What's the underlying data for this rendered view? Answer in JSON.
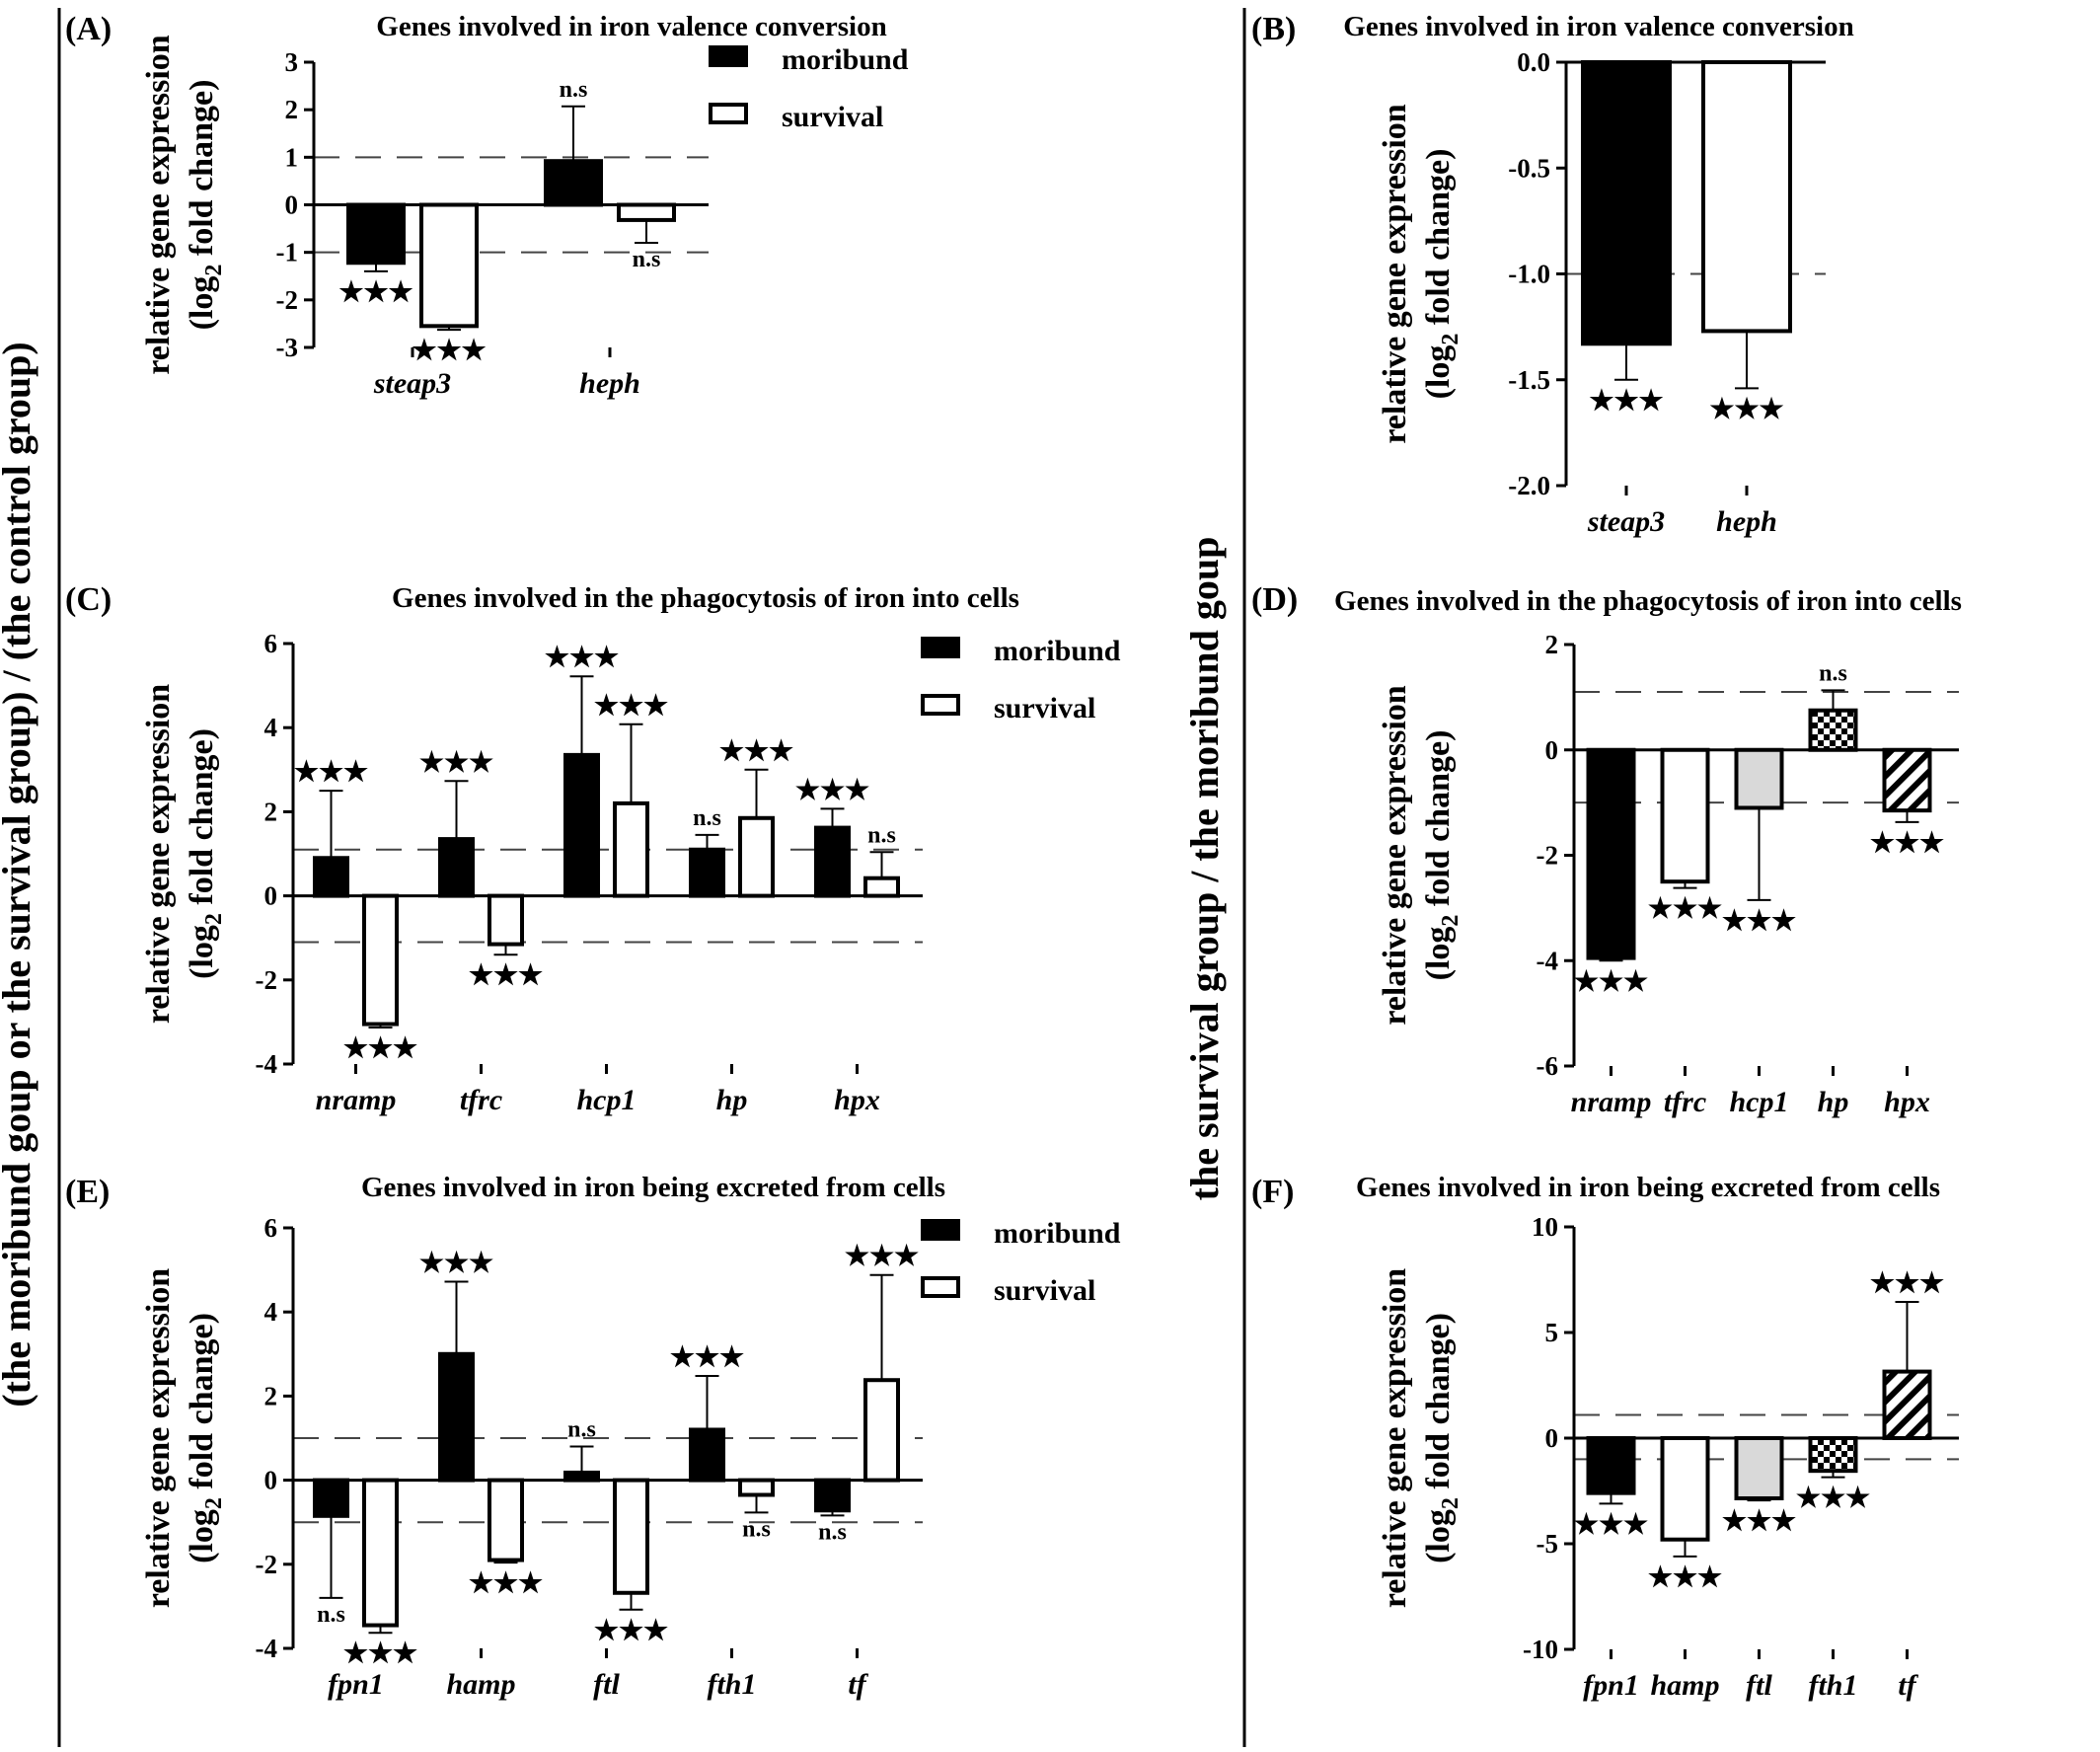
{
  "side_labels": {
    "left": "(the moribund goup or the survival group) / (the control group)",
    "right": "the survival group / the moribund goup"
  },
  "legend": {
    "moribund": "moribund",
    "survival": "survival"
  },
  "y_axis_label": {
    "line1": "relative gene expression",
    "line2_pre": "(log",
    "line2_sub": "2",
    "line2_post": " fold change)"
  },
  "colors": {
    "moribund": "#000000",
    "survival": "#ffffff",
    "gray": "#d9d9d9"
  },
  "chart_data": [
    {
      "id": "A",
      "letter": "(A)",
      "title": "Genes involved in iron valence conversion",
      "type": "bar",
      "categories": [
        "steap3",
        "heph"
      ],
      "ylim": [
        -3,
        3
      ],
      "yticks": [
        -3,
        -2,
        -1,
        0,
        1,
        2,
        3
      ],
      "thresholds": [
        1,
        -1
      ],
      "legend": true,
      "series": [
        {
          "name": "moribund",
          "fill": "solid",
          "values": [
            -1.22,
            0.92
          ],
          "errors": [
            0.18,
            1.15
          ],
          "labels": [
            "★★★",
            "n.s"
          ]
        },
        {
          "name": "survival",
          "fill": "white",
          "values": [
            -2.55,
            -0.32
          ],
          "errors": [
            0.08,
            0.48
          ],
          "labels": [
            "★★★",
            "n.s"
          ]
        }
      ]
    },
    {
      "id": "B",
      "letter": "(B)",
      "title": "Genes involved in iron valence conversion",
      "type": "bar",
      "categories": [
        "steap3",
        "heph"
      ],
      "ylim": [
        -2.0,
        0.0
      ],
      "yticks": [
        -2.0,
        -1.5,
        -1.0,
        -0.5,
        0.0
      ],
      "thresholds": [
        -1.0
      ],
      "legend": false,
      "series": [
        {
          "fills": [
            "solid",
            "white"
          ],
          "values": [
            -1.33,
            -1.27
          ],
          "errors": [
            0.17,
            0.27
          ],
          "labels": [
            "★★★",
            "★★★"
          ]
        }
      ]
    },
    {
      "id": "C",
      "letter": "(C)",
      "title": "Genes involved in the phagocytosis of iron into cells",
      "type": "bar",
      "categories": [
        "nramp",
        "tfrc",
        "hcp1",
        "hp",
        "hpx"
      ],
      "ylim": [
        -4,
        6
      ],
      "yticks": [
        -4,
        -2,
        0,
        2,
        4,
        6
      ],
      "thresholds": [
        1.1,
        -1.1
      ],
      "legend": true,
      "series": [
        {
          "name": "moribund",
          "fill": "solid",
          "values": [
            0.9,
            1.35,
            3.35,
            1.1,
            1.62
          ],
          "errors": [
            1.6,
            1.38,
            1.87,
            0.35,
            0.45
          ],
          "labels": [
            "★★★",
            "★★★",
            "★★★",
            "n.s",
            "★★★"
          ]
        },
        {
          "name": "survival",
          "fill": "white",
          "values": [
            -3.05,
            -1.15,
            2.2,
            1.85,
            0.42
          ],
          "errors": [
            0.08,
            0.25,
            1.88,
            1.15,
            0.62
          ],
          "labels": [
            "★★★",
            "★★★",
            "★★★",
            "★★★",
            "n.s"
          ]
        }
      ]
    },
    {
      "id": "D",
      "letter": "(D)",
      "title": "Genes involved in the phagocytosis of iron into cells",
      "type": "bar",
      "categories": [
        "nramp",
        "tfrc",
        "hcp1",
        "hp",
        "hpx"
      ],
      "ylim": [
        -6,
        2
      ],
      "yticks": [
        -6,
        -4,
        -2,
        0,
        2
      ],
      "thresholds": [
        1.1,
        -1.0
      ],
      "legend": false,
      "series": [
        {
          "fills": [
            "solid",
            "white",
            "gray",
            "checker",
            "hatch"
          ],
          "values": [
            -3.95,
            -2.5,
            -1.1,
            0.75,
            -1.15
          ],
          "errors": [
            0.05,
            0.12,
            1.75,
            0.38,
            0.22
          ],
          "labels": [
            "★★★",
            "★★★",
            "★★★",
            "n.s",
            "★★★"
          ]
        }
      ]
    },
    {
      "id": "E",
      "letter": "(E)",
      "title": "Genes involved in iron being excreted from cells",
      "type": "bar",
      "categories": [
        "fpn1",
        "hamp",
        "ftl",
        "fth1",
        "tf"
      ],
      "ylim": [
        -4,
        6
      ],
      "yticks": [
        -4,
        -2,
        0,
        2,
        4,
        6
      ],
      "thresholds": [
        1,
        -1
      ],
      "legend": true,
      "series": [
        {
          "name": "moribund",
          "fill": "solid",
          "values": [
            -0.85,
            3.0,
            0.18,
            1.2,
            -0.72
          ],
          "errors": [
            1.95,
            1.72,
            0.62,
            1.28,
            0.12
          ],
          "labels": [
            "n.s",
            "★★★",
            "n.s",
            "★★★",
            "n.s"
          ]
        },
        {
          "name": "survival",
          "fill": "white",
          "values": [
            -3.45,
            -1.9,
            -2.68,
            -0.35,
            2.38
          ],
          "errors": [
            0.18,
            0.06,
            0.4,
            0.42,
            2.5
          ],
          "labels": [
            "★★★",
            "★★★",
            "★★★",
            "n.s",
            "★★★"
          ]
        }
      ]
    },
    {
      "id": "F",
      "letter": "(F)",
      "title": "Genes involved in iron being excreted from cells",
      "type": "bar",
      "categories": [
        "fpn1",
        "hamp",
        "ftl",
        "fth1",
        "tf"
      ],
      "ylim": [
        -10,
        10
      ],
      "yticks": [
        -10,
        -5,
        0,
        5,
        10
      ],
      "thresholds": [
        1.1,
        -1.0
      ],
      "legend": false,
      "series": [
        {
          "fills": [
            "solid",
            "white",
            "gray",
            "checker",
            "hatch"
          ],
          "values": [
            -2.6,
            -4.8,
            -2.85,
            -1.55,
            3.15
          ],
          "errors": [
            0.5,
            0.8,
            0.1,
            0.3,
            3.3
          ],
          "labels": [
            "★★★",
            "★★★",
            "★★★",
            "★★★",
            "★★★"
          ]
        }
      ]
    }
  ]
}
